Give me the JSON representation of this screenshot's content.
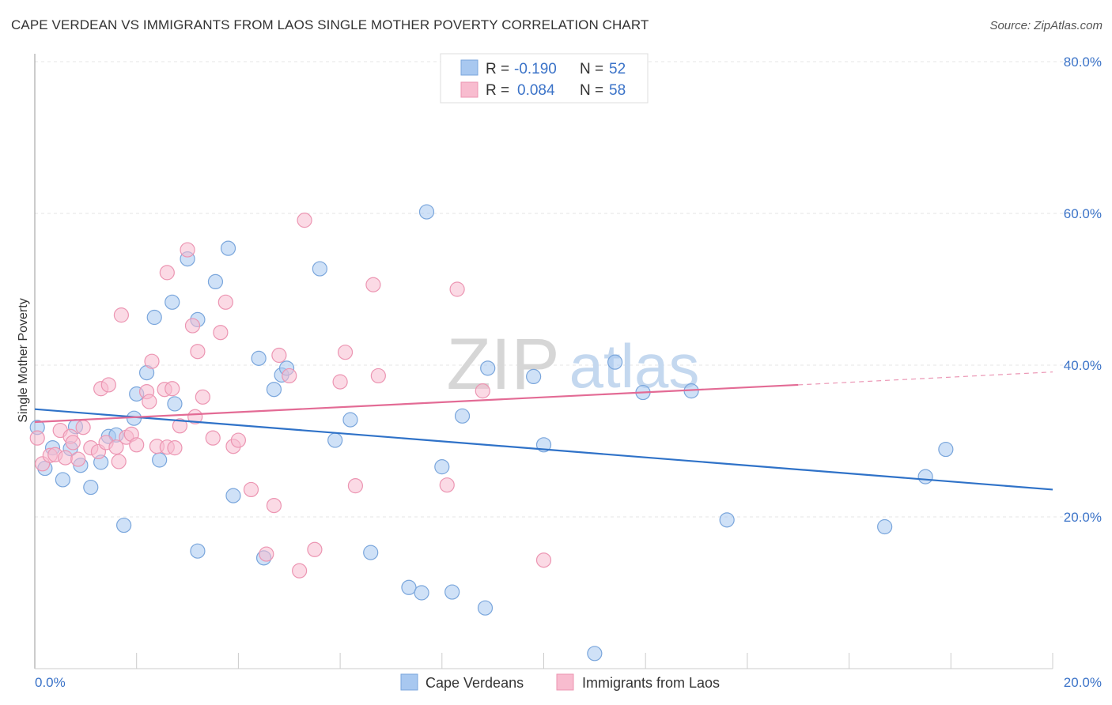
{
  "chart_data": {
    "type": "scatter",
    "title": "CAPE VERDEAN VS IMMIGRANTS FROM LAOS SINGLE MOTHER POVERTY CORRELATION CHART",
    "source": "Source: ZipAtlas.com",
    "watermark": {
      "zip": "ZIP",
      "atlas": "atlas"
    },
    "xlabel": "",
    "ylabel": "Single Mother Poverty",
    "xlim": [
      0,
      20
    ],
    "ylim": [
      0,
      80
    ],
    "x_tick_labels": [
      "0.0%",
      "20.0%"
    ],
    "y_ticks": [
      20,
      40,
      60,
      80
    ],
    "y_tick_labels": [
      "20.0%",
      "40.0%",
      "60.0%",
      "80.0%"
    ],
    "grid": true,
    "legend_top": [
      {
        "r_label": "R =",
        "r_value": "-0.190",
        "n_label": "N =",
        "n_value": "52"
      },
      {
        "r_label": "R =",
        "r_value": "0.084",
        "n_label": "N =",
        "n_value": "58"
      }
    ],
    "legend_position": "top-center",
    "series": [
      {
        "name": "Cape Verdeans",
        "color": "#a8c8f0",
        "stroke": "#7aa6dc",
        "line_color": "#2f72c8",
        "trend": {
          "x": [
            0,
            20
          ],
          "y": [
            34.2,
            23.6
          ]
        },
        "points": [
          [
            0.05,
            31.8
          ],
          [
            0.2,
            26.4
          ],
          [
            0.35,
            29.1
          ],
          [
            0.55,
            24.9
          ],
          [
            0.7,
            29.0
          ],
          [
            0.8,
            31.9
          ],
          [
            0.9,
            26.8
          ],
          [
            1.1,
            23.9
          ],
          [
            1.3,
            27.2
          ],
          [
            1.45,
            30.6
          ],
          [
            1.6,
            30.8
          ],
          [
            1.75,
            18.9
          ],
          [
            1.95,
            33.0
          ],
          [
            2.0,
            36.2
          ],
          [
            2.2,
            39.0
          ],
          [
            2.35,
            46.3
          ],
          [
            2.45,
            27.5
          ],
          [
            2.7,
            48.3
          ],
          [
            2.75,
            34.9
          ],
          [
            3.0,
            54.0
          ],
          [
            3.2,
            46.0
          ],
          [
            3.2,
            15.5
          ],
          [
            3.55,
            51.0
          ],
          [
            3.8,
            55.4
          ],
          [
            3.9,
            22.8
          ],
          [
            4.4,
            40.9
          ],
          [
            4.5,
            14.6
          ],
          [
            4.7,
            36.8
          ],
          [
            4.85,
            38.7
          ],
          [
            4.95,
            39.6
          ],
          [
            5.6,
            52.7
          ],
          [
            5.9,
            30.1
          ],
          [
            6.2,
            32.8
          ],
          [
            6.6,
            15.3
          ],
          [
            7.35,
            10.7
          ],
          [
            7.6,
            10.0
          ],
          [
            7.7,
            60.2
          ],
          [
            8.0,
            26.6
          ],
          [
            8.2,
            10.1
          ],
          [
            8.4,
            33.3
          ],
          [
            8.85,
            8.0
          ],
          [
            8.9,
            39.6
          ],
          [
            9.8,
            38.5
          ],
          [
            10.0,
            29.5
          ],
          [
            11.0,
            2.0
          ],
          [
            11.4,
            40.4
          ],
          [
            11.95,
            36.4
          ],
          [
            12.9,
            36.6
          ],
          [
            13.6,
            19.6
          ],
          [
            16.7,
            18.7
          ],
          [
            17.5,
            25.3
          ],
          [
            17.9,
            28.9
          ]
        ]
      },
      {
        "name": "Immigrants from Laos",
        "color": "#f8bccf",
        "stroke": "#ec95b2",
        "line_color": "#e36b95",
        "trend": {
          "x": [
            0,
            15
          ],
          "y": [
            32.5,
            37.4
          ]
        },
        "trend_ext": {
          "x": [
            15,
            20
          ],
          "y": [
            37.4,
            39.1
          ]
        },
        "points": [
          [
            0.05,
            30.4
          ],
          [
            0.15,
            27.0
          ],
          [
            0.3,
            28.1
          ],
          [
            0.4,
            28.2
          ],
          [
            0.5,
            31.4
          ],
          [
            0.6,
            27.8
          ],
          [
            0.7,
            30.6
          ],
          [
            0.75,
            29.8
          ],
          [
            0.85,
            27.6
          ],
          [
            0.95,
            31.8
          ],
          [
            1.1,
            29.1
          ],
          [
            1.25,
            28.6
          ],
          [
            1.3,
            36.9
          ],
          [
            1.4,
            29.8
          ],
          [
            1.45,
            37.4
          ],
          [
            1.6,
            29.2
          ],
          [
            1.65,
            27.3
          ],
          [
            1.7,
            46.6
          ],
          [
            1.8,
            30.5
          ],
          [
            1.9,
            30.9
          ],
          [
            2.0,
            29.5
          ],
          [
            2.2,
            36.5
          ],
          [
            2.25,
            35.2
          ],
          [
            2.3,
            40.5
          ],
          [
            2.4,
            29.3
          ],
          [
            2.55,
            36.8
          ],
          [
            2.6,
            29.2
          ],
          [
            2.6,
            52.2
          ],
          [
            2.7,
            36.9
          ],
          [
            2.75,
            29.1
          ],
          [
            2.85,
            32.0
          ],
          [
            3.0,
            55.2
          ],
          [
            3.1,
            45.2
          ],
          [
            3.15,
            33.2
          ],
          [
            3.2,
            41.8
          ],
          [
            3.3,
            35.8
          ],
          [
            3.5,
            30.4
          ],
          [
            3.65,
            44.3
          ],
          [
            3.75,
            48.3
          ],
          [
            3.9,
            29.3
          ],
          [
            4.0,
            30.1
          ],
          [
            4.25,
            23.6
          ],
          [
            4.55,
            15.1
          ],
          [
            4.7,
            21.5
          ],
          [
            4.8,
            41.3
          ],
          [
            5.0,
            38.6
          ],
          [
            5.2,
            12.9
          ],
          [
            5.3,
            59.1
          ],
          [
            5.5,
            15.7
          ],
          [
            6.0,
            37.8
          ],
          [
            6.1,
            41.7
          ],
          [
            6.3,
            24.1
          ],
          [
            6.65,
            50.6
          ],
          [
            6.75,
            38.6
          ],
          [
            8.1,
            24.2
          ],
          [
            8.3,
            50.0
          ],
          [
            8.8,
            36.6
          ],
          [
            10.0,
            14.3
          ]
        ]
      }
    ]
  },
  "legend_bottom": [
    "Cape Verdeans",
    "Immigrants from Laos"
  ]
}
